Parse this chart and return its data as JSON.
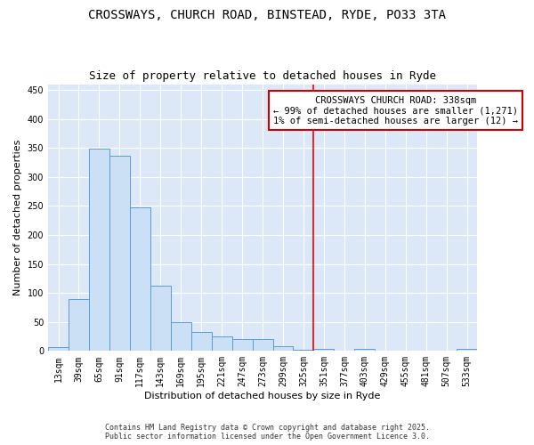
{
  "title_line1": "CROSSWAYS, CHURCH ROAD, BINSTEAD, RYDE, PO33 3TA",
  "title_line2": "Size of property relative to detached houses in Ryde",
  "xlabel": "Distribution of detached houses by size in Ryde",
  "ylabel": "Number of detached properties",
  "categories": [
    "13sqm",
    "39sqm",
    "65sqm",
    "91sqm",
    "117sqm",
    "143sqm",
    "169sqm",
    "195sqm",
    "221sqm",
    "247sqm",
    "273sqm",
    "299sqm",
    "325sqm",
    "351sqm",
    "377sqm",
    "403sqm",
    "429sqm",
    "455sqm",
    "481sqm",
    "507sqm",
    "533sqm"
  ],
  "values": [
    6,
    89,
    349,
    336,
    247,
    113,
    49,
    32,
    25,
    21,
    21,
    8,
    2,
    4,
    1,
    3,
    1,
    0,
    0,
    1,
    3
  ],
  "bar_color": "#cce0f5",
  "bar_edgecolor": "#5b9bd5",
  "background_color": "#dce8f7",
  "grid_color": "#ffffff",
  "annotation_title": "CROSSWAYS CHURCH ROAD: 338sqm",
  "annotation_line2": "← 99% of detached houses are smaller (1,271)",
  "annotation_line3": "1% of semi-detached houses are larger (12) →",
  "annotation_box_color": "#ffffff",
  "annotation_border_color": "#cc0000",
  "ylim": [
    0,
    460
  ],
  "yticks": [
    0,
    50,
    100,
    150,
    200,
    250,
    300,
    350,
    400,
    450
  ],
  "footer": "Contains HM Land Registry data © Crown copyright and database right 2025.\nPublic sector information licensed under the Open Government Licence 3.0.",
  "title_fontsize": 10,
  "subtitle_fontsize": 9,
  "axis_label_fontsize": 8,
  "tick_fontsize": 7,
  "annotation_fontsize": 7.5,
  "footer_fontsize": 6
}
